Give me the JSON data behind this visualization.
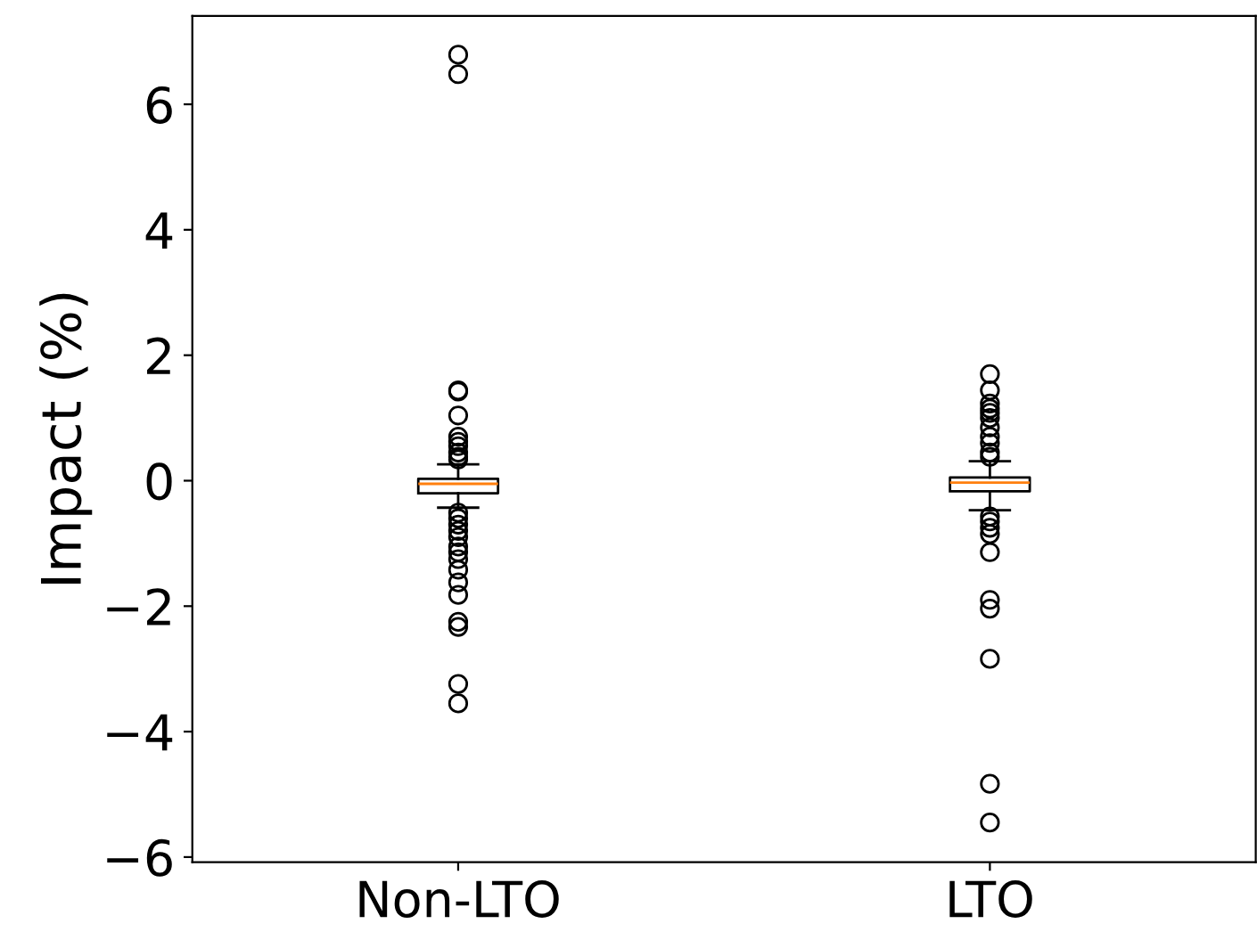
{
  "chart_data": {
    "type": "box",
    "ylabel": "Impact (%)",
    "categories": [
      "Non-LTO",
      "LTO"
    ],
    "boxes": [
      {
        "low": -0.43,
        "q1": -0.2,
        "median": -0.05,
        "q3": 0.03,
        "high": 0.26,
        "outliers": [
          6.79,
          6.48,
          1.44,
          1.42,
          1.04,
          0.7,
          0.62,
          0.55,
          0.45,
          0.38,
          0.34,
          -0.51,
          -0.6,
          -0.7,
          -0.8,
          -0.9,
          -1.05,
          -1.14,
          -1.25,
          -1.42,
          -1.62,
          -1.82,
          -2.25,
          -2.33,
          -3.24,
          -3.55
        ]
      },
      {
        "low": -0.47,
        "q1": -0.17,
        "median": -0.03,
        "q3": 0.05,
        "high": 0.31,
        "outliers": [
          1.7,
          1.44,
          1.23,
          1.15,
          1.08,
          1.0,
          0.85,
          0.7,
          0.6,
          0.45,
          0.38,
          -0.57,
          -0.65,
          -0.75,
          -0.85,
          -1.14,
          -1.9,
          -2.04,
          -2.84,
          -4.83,
          -5.45
        ]
      }
    ],
    "ylim": [
      -6.08,
      7.41
    ],
    "yticks": [
      -6,
      -4,
      -2,
      0,
      2,
      4,
      6
    ],
    "grid": false
  }
}
